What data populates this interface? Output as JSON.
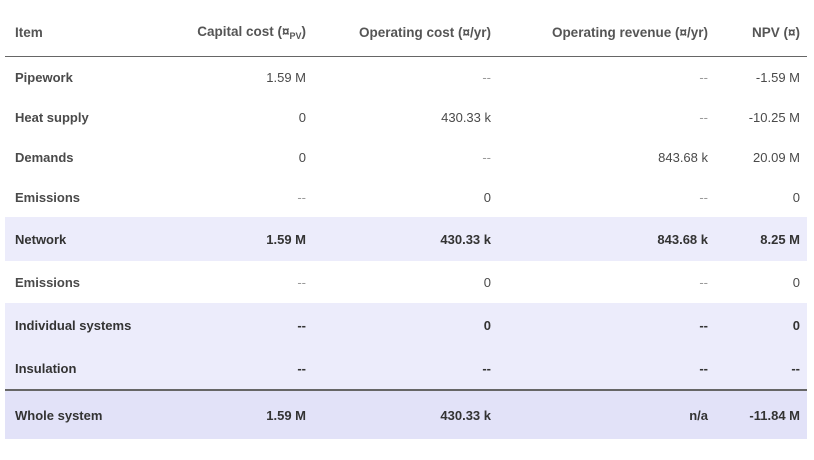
{
  "columns": {
    "item": "Item",
    "capital_cost": "Capital cost (¤",
    "capital_cost_sub": "PV",
    "capital_cost_end": ")",
    "operating_cost": "Operating cost (¤/yr)",
    "operating_revenue": "Operating revenue (¤/yr)",
    "npv": "NPV (¤)"
  },
  "rows": [
    {
      "item": "Pipework",
      "capital": "1.59 M",
      "op_cost": "--",
      "op_rev": "--",
      "npv": "-1.59 M"
    },
    {
      "item": "Heat supply",
      "capital": "0",
      "op_cost": "430.33 k",
      "op_rev": "--",
      "npv": "-10.25 M"
    },
    {
      "item": "Demands",
      "capital": "0",
      "op_cost": "--",
      "op_rev": "843.68 k",
      "npv": "20.09 M"
    },
    {
      "item": "Emissions",
      "capital": "--",
      "op_cost": "0",
      "op_rev": "--",
      "npv": "0"
    },
    {
      "item": "Network",
      "capital": "1.59 M",
      "op_cost": "430.33 k",
      "op_rev": "843.68 k",
      "npv": "8.25 M"
    },
    {
      "item": "Emissions",
      "capital": "--",
      "op_cost": "0",
      "op_rev": "--",
      "npv": "0"
    },
    {
      "item": "Individual systems",
      "capital": "--",
      "op_cost": "0",
      "op_rev": "--",
      "npv": "0"
    },
    {
      "item": "Insulation",
      "capital": "--",
      "op_cost": "--",
      "op_rev": "--",
      "npv": "--"
    },
    {
      "item": "Whole system",
      "capital": "1.59 M",
      "op_cost": "430.33 k",
      "op_rev": "n/a",
      "npv": "-11.84 M"
    }
  ],
  "colors": {
    "highlight_row": "#ececfb",
    "total_row": "#e2e2f8",
    "rule": "#666666"
  }
}
